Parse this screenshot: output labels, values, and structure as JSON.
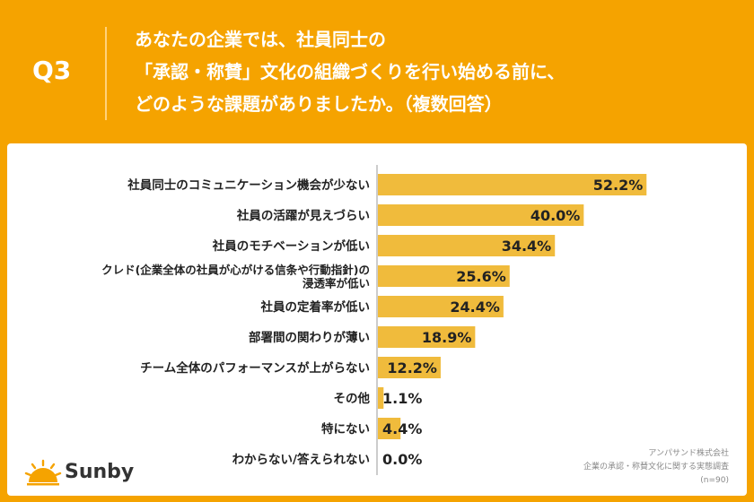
{
  "question": {
    "number": "Q3",
    "lines": [
      "あなたの企業では、社員同士の",
      "「承認・称賛」文化の組織づくりを行い始める前に、",
      "どのような課題がありましたか。（複数回答）"
    ]
  },
  "colors": {
    "background": "#f5a300",
    "bar": "#f0bb3c",
    "text": "#222222"
  },
  "chart_data": {
    "type": "bar",
    "orientation": "horizontal",
    "categories": [
      [
        "社員同士のコミュニケーション機会が少ない"
      ],
      [
        "社員の活躍が見えづらい"
      ],
      [
        "社員のモチベーションが低い"
      ],
      [
        "クレド(企業全体の社員が心がける信条や行動指針)の",
        "浸透率が低い"
      ],
      [
        "社員の定着率が低い"
      ],
      [
        "部署間の関わりが薄い"
      ],
      [
        "チーム全体のパフォーマンスが上がらない"
      ],
      [
        "その他"
      ],
      [
        "特にない"
      ],
      [
        "わからない/答えられない"
      ]
    ],
    "values": [
      52.2,
      40.0,
      34.4,
      25.6,
      24.4,
      18.9,
      12.2,
      1.1,
      4.4,
      0.0
    ],
    "value_labels": [
      "52.2%",
      "40.0%",
      "34.4%",
      "25.6%",
      "24.4%",
      "18.9%",
      "12.2%",
      "1.1%",
      "4.4%",
      "0.0%"
    ],
    "xlim": [
      0,
      60
    ]
  },
  "footer": {
    "company": "アンパサンド株式会社",
    "survey": "企業の承認・称賛文化に関する実態調査",
    "sample": "(n=90)"
  },
  "logo": {
    "name": "Sunby",
    "icon": "sun-icon"
  }
}
